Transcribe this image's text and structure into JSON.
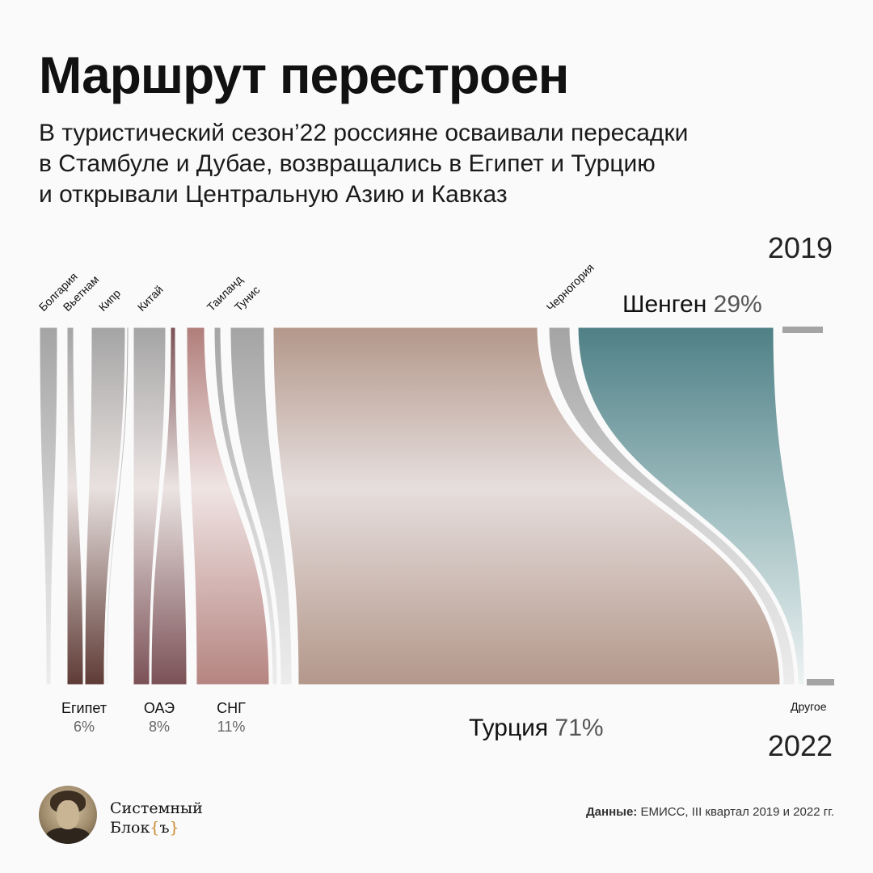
{
  "header": {
    "title": "Маршрут перестроен",
    "subtitle_lines": [
      "В туристический сезон’22 россияне осваивали пересадки",
      "в Стамбуле и Дубае, возвращались в Египет и Турцию",
      "и открывали Центральную Азию и Кавказ"
    ]
  },
  "years": {
    "top": "2019",
    "bottom": "2022"
  },
  "chart_data": {
    "type": "sankey",
    "title": "Маршрут перестроен",
    "top_year": "2019",
    "bottom_year": "2022",
    "top_nodes": [
      {
        "name": "Болгария"
      },
      {
        "name": "Вьетнам"
      },
      {
        "name": "Кипр"
      },
      {
        "name": "Китай"
      },
      {
        "name": "Таиланд"
      },
      {
        "name": "Тунис"
      },
      {
        "name": "Черногория"
      },
      {
        "name": "Шенген",
        "share": "29%"
      }
    ],
    "bottom_nodes": [
      {
        "name": "Египет",
        "share": "6%"
      },
      {
        "name": "ОАЭ",
        "share": "8%"
      },
      {
        "name": "СНГ",
        "share": "11%"
      },
      {
        "name": "Турция",
        "share": "71%"
      },
      {
        "name": "Другое"
      }
    ],
    "colors": {
      "grey": "#a4a4a4",
      "egypt": "#5e3a35",
      "uae": "#7a5055",
      "cis": "#b58480",
      "turkey": "#b3978a",
      "schengen": "#4e8086",
      "pale": "#e6dedd"
    }
  },
  "footer": {
    "brand_line1": "Системный",
    "brand_line2_text": "Блок",
    "brand_brace_open": "{",
    "brand_brace_char": "ъ",
    "brand_brace_close": "}",
    "source_label": "Данные:",
    "source_text": " ЕМИСС, III квартал 2019 и 2022 гг."
  }
}
